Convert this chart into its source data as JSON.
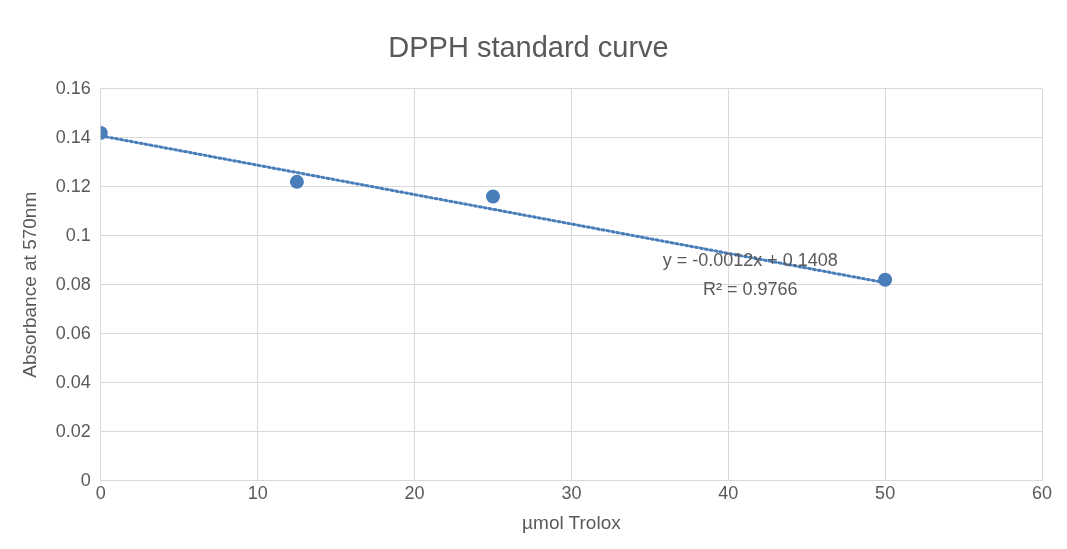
{
  "chart_data": {
    "type": "scatter",
    "title": "DPPH standard curve",
    "xlabel": "µmol Trolox",
    "ylabel": "Absorbance at 570nm",
    "series": [
      {
        "type": "scatter",
        "color": "#4a7ebb",
        "x": [
          0,
          12.5,
          25,
          50
        ],
        "values": [
          0.142,
          0.122,
          0.116,
          0.082
        ],
        "marker": "circle"
      },
      {
        "type": "line",
        "color": "#4a7ebb",
        "x": [
          0,
          50
        ],
        "values": [
          0.1408,
          0.0808
        ],
        "line_style": "dotted",
        "marker": "none"
      }
    ],
    "xlim": [
      0,
      60
    ],
    "xticks": [
      0,
      10,
      20,
      30,
      40,
      50,
      60
    ],
    "ylim": [
      0,
      0.16
    ],
    "yticks": [
      0,
      {
        "value": 0.02,
        "label": "0.02"
      },
      {
        "value": 0.04,
        "label": "0.04"
      },
      {
        "value": 0.06,
        "label": "0.06"
      },
      {
        "value": 0.08,
        "label": "0.08"
      },
      {
        "value": 0.1,
        "label": "0.1"
      },
      {
        "value": 0.12,
        "label": "0.12"
      },
      {
        "value": 0.14,
        "label": "0.14"
      },
      {
        "value": 0.16,
        "label": "0.16"
      }
    ],
    "grid": true,
    "legend": false,
    "annotations": [
      "y = -0.0012x + 0.1408",
      "R² = 0.9766"
    ]
  }
}
